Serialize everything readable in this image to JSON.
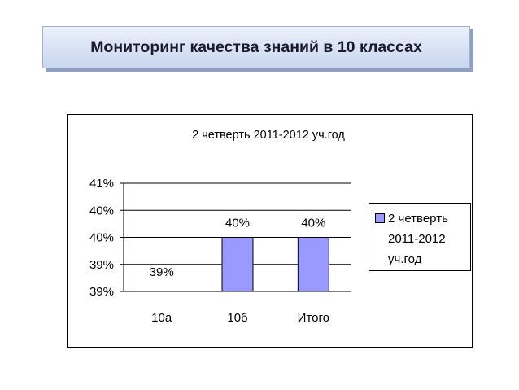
{
  "slide": {
    "title": "Мониторинг качества знаний в 10 классах"
  },
  "chart_data": {
    "type": "bar",
    "title": "2 четверть 2011-2012 уч.год",
    "categories": [
      "10а",
      "10б",
      "Итого"
    ],
    "series": [
      {
        "name": "2 четверть 2011-2012 уч.год",
        "values": [
          0.39,
          0.4,
          0.4
        ],
        "data_labels": [
          "39%",
          "40%",
          "40%"
        ],
        "color": "#9999ff"
      }
    ],
    "y_ticks": [
      "41%",
      "40%",
      "40%",
      "39%",
      "39%"
    ],
    "ylim": [
      0.39,
      0.41
    ],
    "grid": true,
    "legend_position": "right"
  }
}
